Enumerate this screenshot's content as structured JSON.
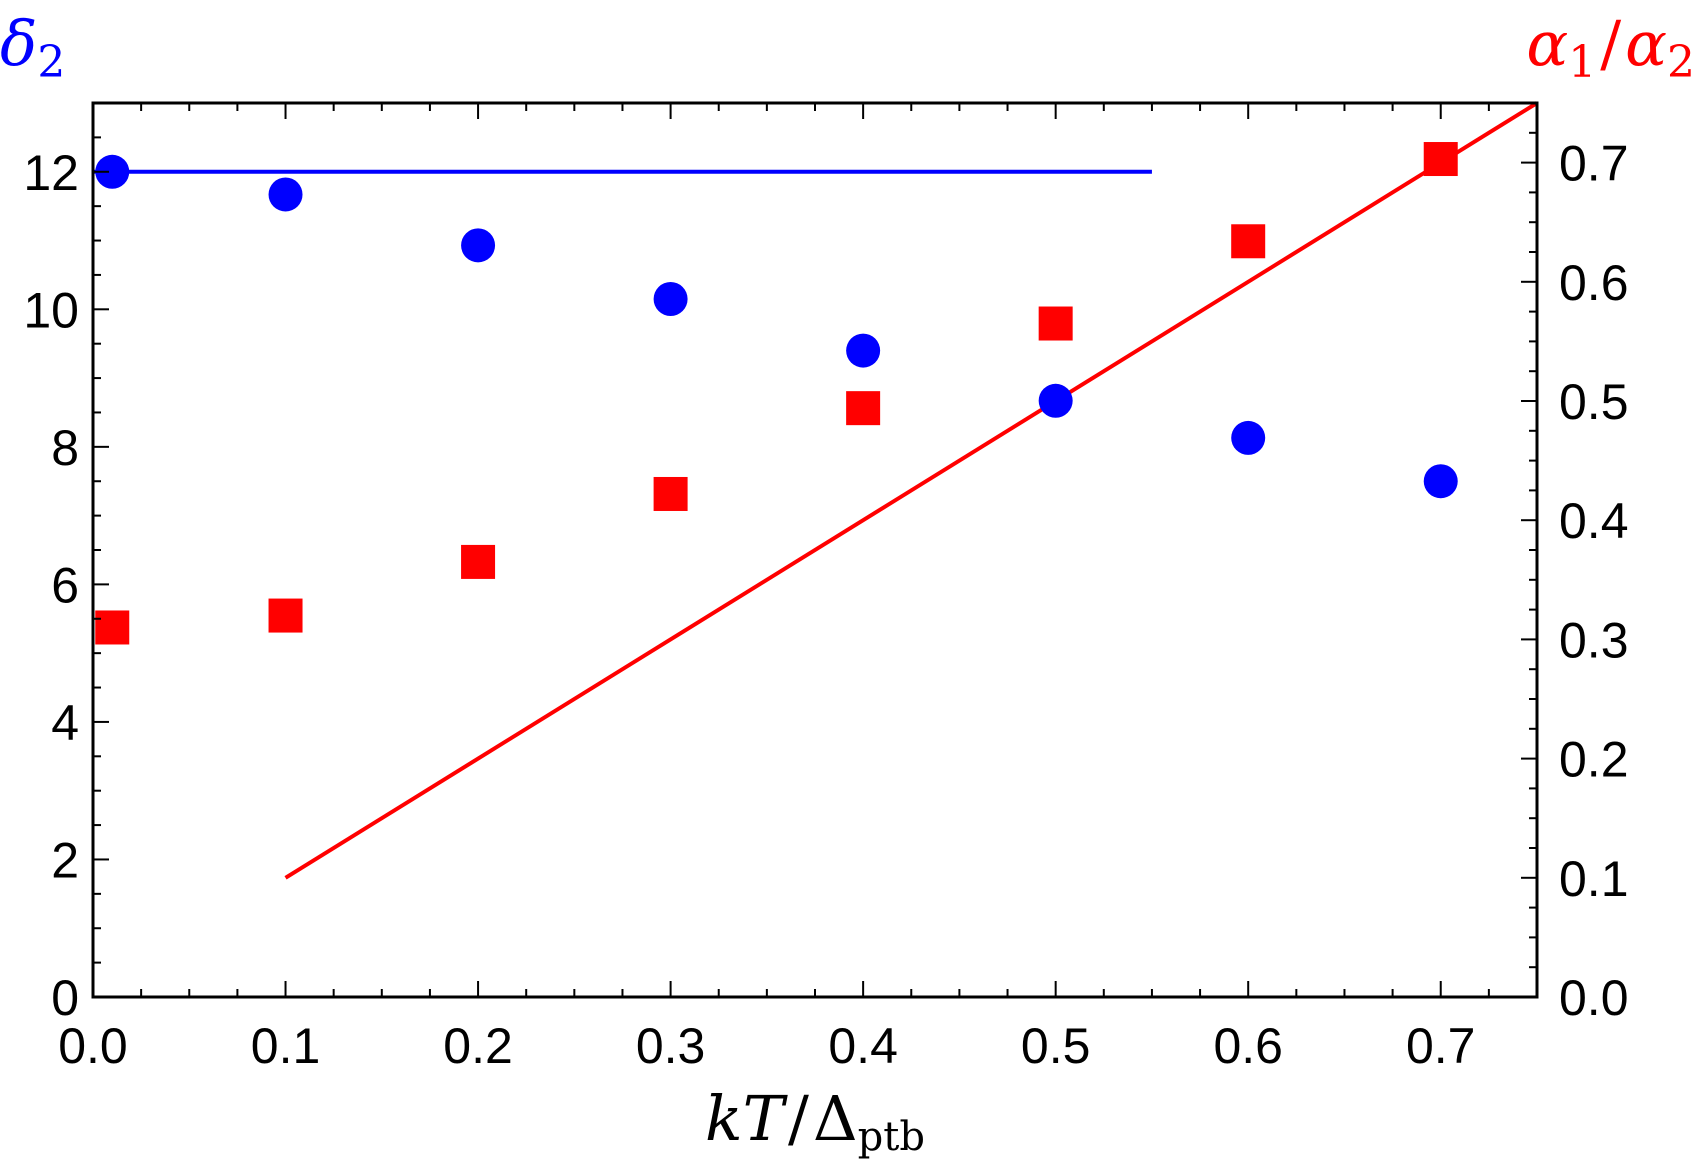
{
  "chart_data": {
    "type": "scatter",
    "x": [
      0.01,
      0.1,
      0.2,
      0.3,
      0.4,
      0.5,
      0.6,
      0.7
    ],
    "xlim": [
      0.0,
      0.75
    ],
    "x_ticks": [
      "0.0",
      "0.1",
      "0.2",
      "0.3",
      "0.4",
      "0.5",
      "0.6",
      "0.7"
    ],
    "xlabel": {
      "var": "kT",
      "slash": "/",
      "sym": "Δ",
      "sub": "ptb"
    },
    "y_left": {
      "label": {
        "sym": "δ",
        "sub": "2"
      },
      "color": "#0000ff",
      "lim": [
        0,
        13
      ],
      "ticks": [
        "0",
        "2",
        "4",
        "6",
        "8",
        "10",
        "12"
      ]
    },
    "y_right": {
      "label": {
        "sym1": "α",
        "sub1": "1",
        "slash": "/",
        "sym2": "α",
        "sub2": "2"
      },
      "color": "#ff0000",
      "lim": [
        0.0,
        0.75
      ],
      "ticks": [
        "0.0",
        "0.1",
        "0.2",
        "0.3",
        "0.4",
        "0.5",
        "0.6",
        "0.7"
      ]
    },
    "series": [
      {
        "axis": "left",
        "marker": "circle",
        "color": "#0000ff",
        "values": [
          12.0,
          11.67,
          10.93,
          10.15,
          9.4,
          8.67,
          8.13,
          7.5
        ]
      },
      {
        "axis": "right",
        "marker": "square",
        "color": "#ff0000",
        "values": [
          0.31,
          0.32,
          0.365,
          0.422,
          0.494,
          0.565,
          0.634,
          0.703
        ]
      }
    ],
    "lines": [
      {
        "axis": "left",
        "color": "#0000ff",
        "x": [
          0.0,
          0.55
        ],
        "y": [
          12.0,
          12.0
        ]
      },
      {
        "axis": "right",
        "color": "#ff0000",
        "x": [
          0.1,
          0.75
        ],
        "y": [
          0.1,
          0.75
        ]
      }
    ],
    "grid": false
  }
}
